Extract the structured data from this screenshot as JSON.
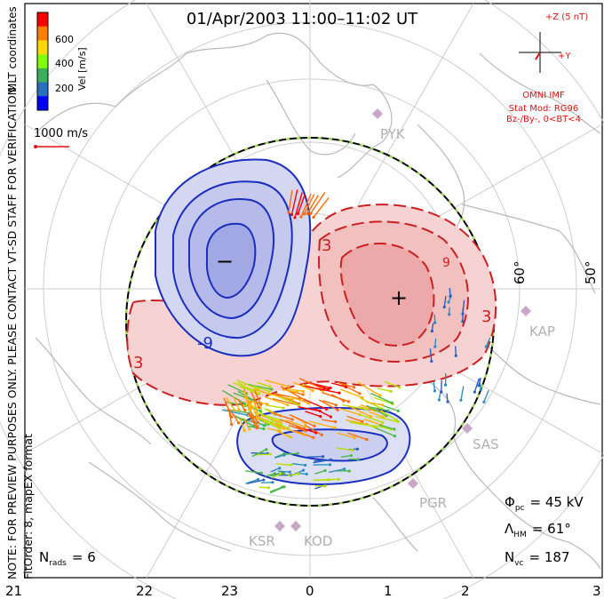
{
  "title": "01/Apr/2003  11:00–11:02 UT",
  "coordinate_system": "MLT coordinates",
  "vel_scale": {
    "label": "Vel [m/s]",
    "ticks": [
      "600",
      "400",
      "200"
    ],
    "colors": [
      "#ff0000",
      "#ff7f00",
      "#ffd700",
      "#7fff00",
      "#3caf5a",
      "#2a6fbf",
      "#0000ff"
    ]
  },
  "reference_vector_label": "1000 m/s",
  "watermark": "NOTE: FOR PREVIEW PURPOSES ONLY. PLEASE CONTACT VT-SD STAFF FOR VERIFICATION.",
  "fit_info": "FitOrder: 8, mapEX format",
  "imf": {
    "axis_z": "+Z (5 nT)",
    "axis_y": "+Y",
    "source": "OMNI IMF",
    "stat_model": "Stat Mod: RG96",
    "conditions": "Bz-/By-, 0<BT<4"
  },
  "latitude_labels": [
    "60°",
    "50°"
  ],
  "radar_sites": [
    "PYK",
    "KAP",
    "SAS",
    "PGR",
    "KSR",
    "KOD"
  ],
  "contour_labels": {
    "negative": [
      "-9"
    ],
    "positive": [
      "3",
      "3",
      "3",
      "9"
    ]
  },
  "potential_extremes": {
    "min_symbol": "−",
    "max_symbol": "+"
  },
  "stats": {
    "phi_label": "Φ",
    "phi_sub": "pc",
    "phi_value": "= 45 kV",
    "lambda_label": "Λ",
    "lambda_sub": "HM",
    "lambda_value": "= 61°",
    "nvc_label": "N",
    "nvc_sub": "vc",
    "nvc_value": "= 187",
    "nrads_label": "N",
    "nrads_sub": "rads",
    "nrads_value": "= 6"
  },
  "mlt_labels": [
    "21",
    "22",
    "23",
    "0",
    "1",
    "2",
    "3"
  ],
  "colors": {
    "negative_contour": "#1a2fbf",
    "negative_fill": "#c8ccee",
    "positive_contour": "#cc1f1f",
    "positive_fill": "#f7d2d2",
    "imf_text": "#e01010",
    "grid": "#c8c8c8",
    "coast": "#b8b8b8",
    "radar_marker": "#c8a8c8"
  }
}
